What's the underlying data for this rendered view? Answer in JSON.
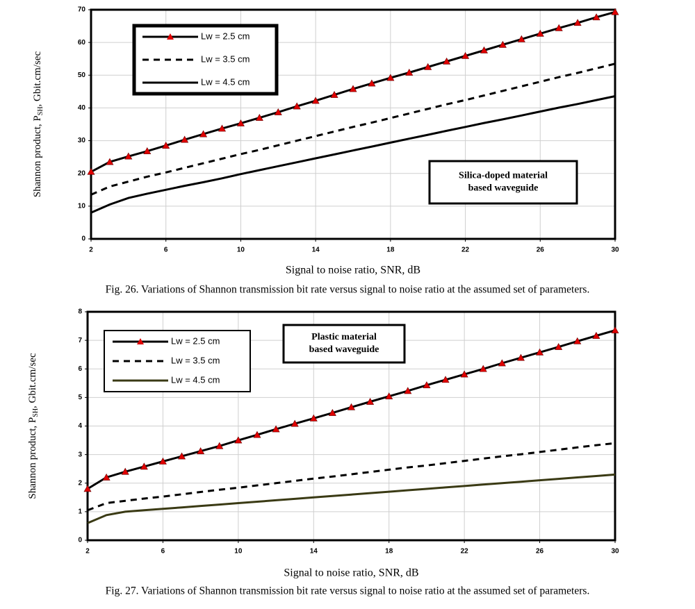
{
  "chart_data": [
    {
      "type": "line",
      "ylabel": [
        "Shannon product, P",
        "SH",
        ", Gbit.cm/sec"
      ],
      "xlabel": "Signal to noise ratio, SNR, dB",
      "caption": "Fig. 26. Variations of Shannon transmission bit rate versus signal to noise ratio at the assumed set of parameters.",
      "annotation": [
        "Silica-doped material",
        "based waveguide"
      ],
      "xlim": [
        2,
        30
      ],
      "xticks": [
        2,
        6,
        10,
        14,
        18,
        22,
        26,
        30
      ],
      "ylim": [
        0,
        70
      ],
      "yticks": [
        0,
        10,
        20,
        30,
        40,
        50,
        60,
        70
      ],
      "grid": true,
      "x": [
        2,
        3,
        4,
        5,
        6,
        7,
        8,
        9,
        10,
        11,
        12,
        13,
        14,
        15,
        16,
        17,
        18,
        19,
        20,
        21,
        22,
        23,
        24,
        25,
        26,
        27,
        28,
        29,
        30
      ],
      "series": [
        {
          "name": "Lw = 2.5 cm",
          "color": "#000000",
          "style": "solid",
          "marker": "triangle",
          "marker_color": "#e00000",
          "values": [
            20.5,
            23.5,
            25.2,
            26.8,
            28.5,
            30.3,
            32,
            33.7,
            35.3,
            37,
            38.7,
            40.5,
            42.2,
            44,
            45.8,
            47.5,
            49.2,
            50.8,
            52.5,
            54.2,
            55.9,
            57.6,
            59.3,
            61,
            62.7,
            64.4,
            66,
            67.7,
            69.3
          ]
        },
        {
          "name": "Lw = 3.5 cm",
          "color": "#000000",
          "style": "dashed",
          "values": [
            13.5,
            16,
            17.5,
            19,
            20.3,
            21.7,
            23.1,
            24.5,
            25.9,
            27.2,
            28.6,
            30,
            31.4,
            32.8,
            34.2,
            35.5,
            36.9,
            38.3,
            39.7,
            41.1,
            42.4,
            43.8,
            45.2,
            46.6,
            48,
            49.4,
            50.7,
            52.1,
            53.5
          ]
        },
        {
          "name": "Lw = 4.5 cm",
          "color": "#000000",
          "style": "solid",
          "values": [
            8,
            10.5,
            12.5,
            13.8,
            15,
            16.2,
            17.3,
            18.5,
            19.8,
            21,
            22.2,
            23.4,
            24.6,
            25.8,
            27,
            28.2,
            29.4,
            30.6,
            31.8,
            33,
            34.2,
            35.4,
            36.5,
            37.7,
            38.9,
            40.1,
            41.2,
            42.4,
            43.6
          ]
        }
      ]
    },
    {
      "type": "line",
      "ylabel": [
        "Shannon product, P",
        "SH",
        ", Gbit.cm/sec"
      ],
      "xlabel": "Signal to noise ratio, SNR, dB",
      "caption": "Fig. 27. Variations of Shannon transmission bit rate versus signal to noise ratio at the assumed set of parameters.",
      "annotation": [
        "Plastic material",
        "based waveguide"
      ],
      "xlim": [
        2,
        30
      ],
      "xticks": [
        2,
        6,
        10,
        14,
        18,
        22,
        26,
        30
      ],
      "ylim": [
        0,
        8
      ],
      "yticks": [
        0,
        1,
        2,
        3,
        4,
        5,
        6,
        7,
        8
      ],
      "grid": true,
      "x": [
        2,
        3,
        4,
        5,
        6,
        7,
        8,
        9,
        10,
        11,
        12,
        13,
        14,
        15,
        16,
        17,
        18,
        19,
        20,
        21,
        22,
        23,
        24,
        25,
        26,
        27,
        28,
        29,
        30
      ],
      "series": [
        {
          "name": "Lw = 2.5 cm",
          "color": "#000000",
          "style": "solid",
          "marker": "triangle",
          "marker_color": "#e00000",
          "values": [
            1.8,
            2.2,
            2.4,
            2.58,
            2.76,
            2.94,
            3.12,
            3.3,
            3.5,
            3.69,
            3.89,
            4.08,
            4.27,
            4.46,
            4.66,
            4.85,
            5.04,
            5.23,
            5.43,
            5.62,
            5.81,
            6,
            6.2,
            6.39,
            6.58,
            6.77,
            6.97,
            7.16,
            7.35
          ]
        },
        {
          "name": "Lw = 3.5 cm",
          "color": "#000000",
          "style": "dashed",
          "values": [
            1.05,
            1.3,
            1.38,
            1.46,
            1.53,
            1.61,
            1.69,
            1.77,
            1.84,
            1.92,
            2,
            2.08,
            2.16,
            2.23,
            2.31,
            2.39,
            2.47,
            2.55,
            2.62,
            2.7,
            2.78,
            2.86,
            2.94,
            3.01,
            3.09,
            3.17,
            3.25,
            3.33,
            3.4
          ]
        },
        {
          "name": "Lw = 4.5 cm",
          "color": "#3a3a14",
          "style": "solid",
          "values": [
            0.6,
            0.88,
            1,
            1.05,
            1.1,
            1.15,
            1.2,
            1.25,
            1.3,
            1.35,
            1.4,
            1.45,
            1.5,
            1.55,
            1.6,
            1.65,
            1.7,
            1.75,
            1.8,
            1.85,
            1.9,
            1.95,
            2,
            2.05,
            2.1,
            2.15,
            2.2,
            2.25,
            2.3
          ]
        }
      ]
    }
  ]
}
